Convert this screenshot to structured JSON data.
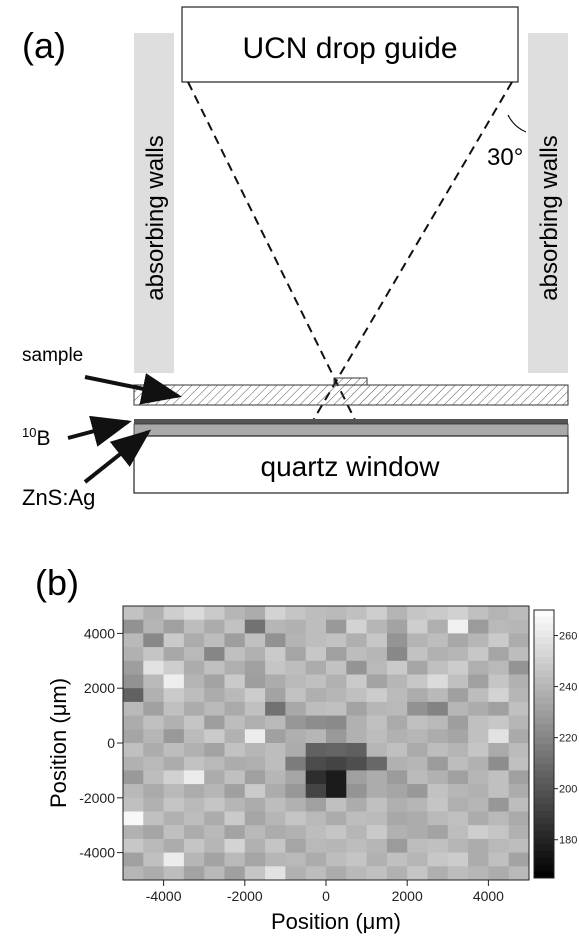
{
  "panel_a": {
    "label": "(a)",
    "guide_label": "UCN drop guide",
    "wall_left_label": "absorbing walls",
    "wall_right_label": "absorbing walls",
    "angle_label": "30°",
    "sample_label": "sample",
    "boron_label_sup": "10",
    "boron_label_base": "B",
    "zns_label": "ZnS:Ag",
    "window_label": "quartz window"
  },
  "panel_b": {
    "label": "(b)",
    "xlabel": "Position (μm)",
    "ylabel": "Position (μm)"
  },
  "chart_data": {
    "type": "heatmap",
    "title": "",
    "xlabel": "Position (μm)",
    "ylabel": "Position (μm)",
    "xlim": [
      -5000,
      5000
    ],
    "ylim": [
      -5000,
      5000
    ],
    "x_ticks": [
      "-4000",
      "-2000",
      "0",
      "2000",
      "4000"
    ],
    "y_ticks": [
      "4000",
      "2000",
      "0",
      "-2000",
      "-4000"
    ],
    "colorbar_ticks": [
      "260",
      "240",
      "220",
      "200",
      "180"
    ],
    "colorbar_range": [
      165,
      270
    ],
    "colormap": "grayscale",
    "grid": {
      "cols": 20,
      "rows": 20,
      "values": [
        [
          245,
          238,
          250,
          255,
          248,
          240,
          236,
          252,
          246,
          243,
          241,
          244,
          250,
          239,
          246,
          248,
          251,
          244,
          239,
          242
        ],
        [
          225,
          239,
          231,
          243,
          236,
          245,
          212,
          240,
          238,
          243,
          228,
          252,
          240,
          232,
          250,
          237,
          264,
          229,
          241,
          240
        ],
        [
          241,
          221,
          248,
          236,
          243,
          230,
          244,
          225,
          239,
          243,
          245,
          237,
          247,
          226,
          239,
          243,
          234,
          240,
          248,
          236
        ],
        [
          238,
          246,
          234,
          241,
          220,
          244,
          238,
          248,
          233,
          247,
          231,
          243,
          240,
          221,
          245,
          238,
          240,
          247,
          233,
          243
        ],
        [
          230,
          258,
          250,
          236,
          244,
          237,
          231,
          246,
          243,
          236,
          245,
          226,
          241,
          248,
          233,
          244,
          249,
          237,
          241,
          226
        ],
        [
          225,
          241,
          263,
          239,
          232,
          248,
          230,
          236,
          241,
          244,
          238,
          248,
          232,
          240,
          247,
          255,
          244,
          231,
          246,
          238
        ],
        [
          205,
          238,
          248,
          243,
          236,
          241,
          249,
          232,
          245,
          237,
          240,
          244,
          249,
          242,
          236,
          241,
          231,
          243,
          252,
          240
        ],
        [
          241,
          231,
          244,
          236,
          241,
          235,
          244,
          212,
          234,
          243,
          244,
          232,
          240,
          241,
          225,
          219,
          240,
          236,
          231,
          244
        ],
        [
          236,
          244,
          238,
          246,
          230,
          243,
          237,
          241,
          227,
          223,
          222,
          238,
          244,
          235,
          244,
          241,
          230,
          244,
          247,
          240
        ],
        [
          233,
          240,
          228,
          242,
          248,
          238,
          262,
          231,
          237,
          240,
          228,
          238,
          243,
          238,
          240,
          236,
          233,
          244,
          258,
          235
        ],
        [
          244,
          236,
          243,
          238,
          232,
          245,
          240,
          243,
          236,
          205,
          206,
          204,
          240,
          244,
          235,
          243,
          239,
          246,
          235,
          242
        ],
        [
          238,
          241,
          236,
          245,
          241,
          236,
          237,
          243,
          216,
          196,
          193,
          197,
          208,
          238,
          240,
          229,
          243,
          238,
          223,
          244
        ],
        [
          228,
          243,
          251,
          262,
          236,
          244,
          231,
          240,
          233,
          184,
          176,
          231,
          236,
          229,
          242,
          238,
          231,
          240,
          244,
          231
        ],
        [
          241,
          235,
          241,
          236,
          240,
          231,
          248,
          236,
          227,
          193,
          176,
          226,
          236,
          233,
          228,
          245,
          240,
          238,
          244,
          236
        ],
        [
          244,
          238,
          246,
          241,
          246,
          240,
          236,
          243,
          238,
          231,
          244,
          236,
          244,
          237,
          240,
          246,
          237,
          240,
          227,
          243
        ],
        [
          267,
          244,
          238,
          243,
          236,
          248,
          233,
          240,
          246,
          241,
          236,
          243,
          242,
          234,
          236,
          241,
          244,
          236,
          241,
          235
        ],
        [
          238,
          233,
          244,
          236,
          241,
          232,
          241,
          236,
          238,
          243,
          246,
          240,
          248,
          238,
          236,
          232,
          243,
          250,
          246,
          238
        ],
        [
          247,
          241,
          236,
          246,
          240,
          252,
          238,
          246,
          233,
          241,
          240,
          243,
          240,
          229,
          243,
          244,
          240,
          236,
          241,
          243
        ],
        [
          231,
          244,
          262,
          240,
          232,
          241,
          233,
          240,
          241,
          236,
          243,
          246,
          238,
          244,
          240,
          247,
          249,
          236,
          244,
          232
        ],
        [
          240,
          236,
          243,
          232,
          241,
          231,
          246,
          258,
          238,
          243,
          236,
          241,
          244,
          238,
          246,
          237,
          243,
          240,
          236,
          241
        ]
      ]
    }
  }
}
